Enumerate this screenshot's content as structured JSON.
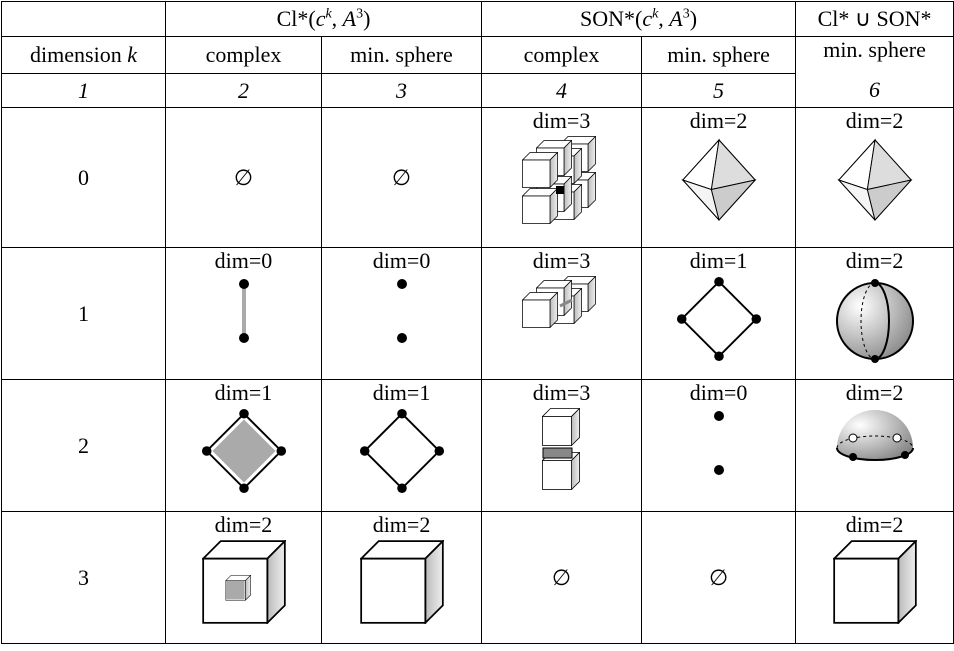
{
  "header": {
    "groups": [
      {
        "parts": [
          "Cl*(",
          "c",
          "k",
          ", ",
          "A",
          "3",
          ")"
        ]
      },
      {
        "parts": [
          "SON*(",
          "c",
          "k",
          ", ",
          "A",
          "3",
          ")"
        ]
      },
      {
        "parts": [
          "Cl* ∪ SON*"
        ]
      }
    ],
    "dimension_label": [
      "dimension",
      "k"
    ],
    "subheaders": [
      "complex",
      "min. sphere",
      "complex",
      "min. sphere",
      "min. sphere"
    ],
    "column_numbers": [
      "1",
      "2",
      "3",
      "4",
      "5",
      "6"
    ]
  },
  "rows": [
    {
      "k": "0",
      "cells": [
        "∅",
        "∅",
        "dim=3",
        "dim=2",
        "dim=2"
      ]
    },
    {
      "k": "1",
      "cells": [
        "dim=0",
        "dim=0",
        "dim=3",
        "dim=1",
        "dim=2"
      ]
    },
    {
      "k": "2",
      "cells": [
        "dim=1",
        "dim=1",
        "dim=3",
        "dim=0",
        "dim=2"
      ]
    },
    {
      "k": "3",
      "cells": [
        "dim=2",
        "dim=2",
        "∅",
        "∅",
        "dim=2"
      ]
    }
  ]
}
